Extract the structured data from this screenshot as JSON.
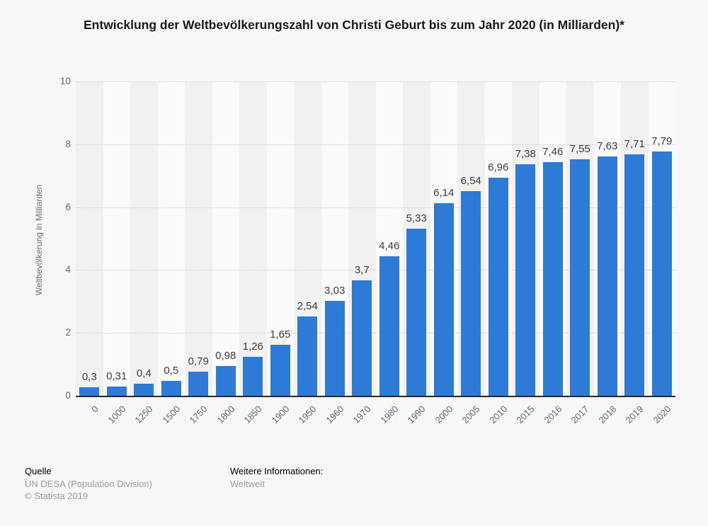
{
  "title": "Entwicklung der Weltbevölkerungszahl von Christi Geburt bis zum Jahr 2020 (in Milliarden)*",
  "chart_data": {
    "type": "bar",
    "categories": [
      "0",
      "1000",
      "1250",
      "1500",
      "1750",
      "1800",
      "1850",
      "1900",
      "1950",
      "1960",
      "1970",
      "1980",
      "1990",
      "2000",
      "2005",
      "2010",
      "2015",
      "2016",
      "2017",
      "2018",
      "2019",
      "2020"
    ],
    "values": [
      0.3,
      0.31,
      0.4,
      0.5,
      0.79,
      0.98,
      1.26,
      1.65,
      2.54,
      3.03,
      3.7,
      4.46,
      5.33,
      6.14,
      6.54,
      6.96,
      7.38,
      7.46,
      7.55,
      7.63,
      7.71,
      7.79
    ],
    "value_labels": [
      "0,3",
      "0,31",
      "0,4",
      "0,5",
      "0,79",
      "0,98",
      "1,26",
      "1,65",
      "2,54",
      "3,03",
      "3,7",
      "4,46",
      "5,33",
      "6,14",
      "6,54",
      "6,96",
      "7,38",
      "7,46",
      "7,55",
      "7,63",
      "7,71",
      "7,79"
    ],
    "title": "Entwicklung der Weltbevölkerungszahl von Christi Geburt bis zum Jahr 2020 (in Milliarden)*",
    "xlabel": "",
    "ylabel": "Weltbevölkerung in Milliarden",
    "ylim": [
      0,
      10
    ],
    "yticks": [
      0,
      2,
      4,
      6,
      8,
      10
    ],
    "grid": "horizontal-dotted",
    "legend": "none",
    "bar_color": "#2e7ad7",
    "grid_color": "#c9c9c9",
    "band_colors": [
      "#f1f1f1",
      "#fafafa"
    ],
    "axis_line_color": "#2b2b2b"
  },
  "footer": {
    "source_label": "Quelle",
    "source_name": "UN DESA (Population Division)",
    "copyright": "© Statista 2019",
    "info_label": "Weitere Informationen:",
    "info_value": "Weltweit"
  }
}
